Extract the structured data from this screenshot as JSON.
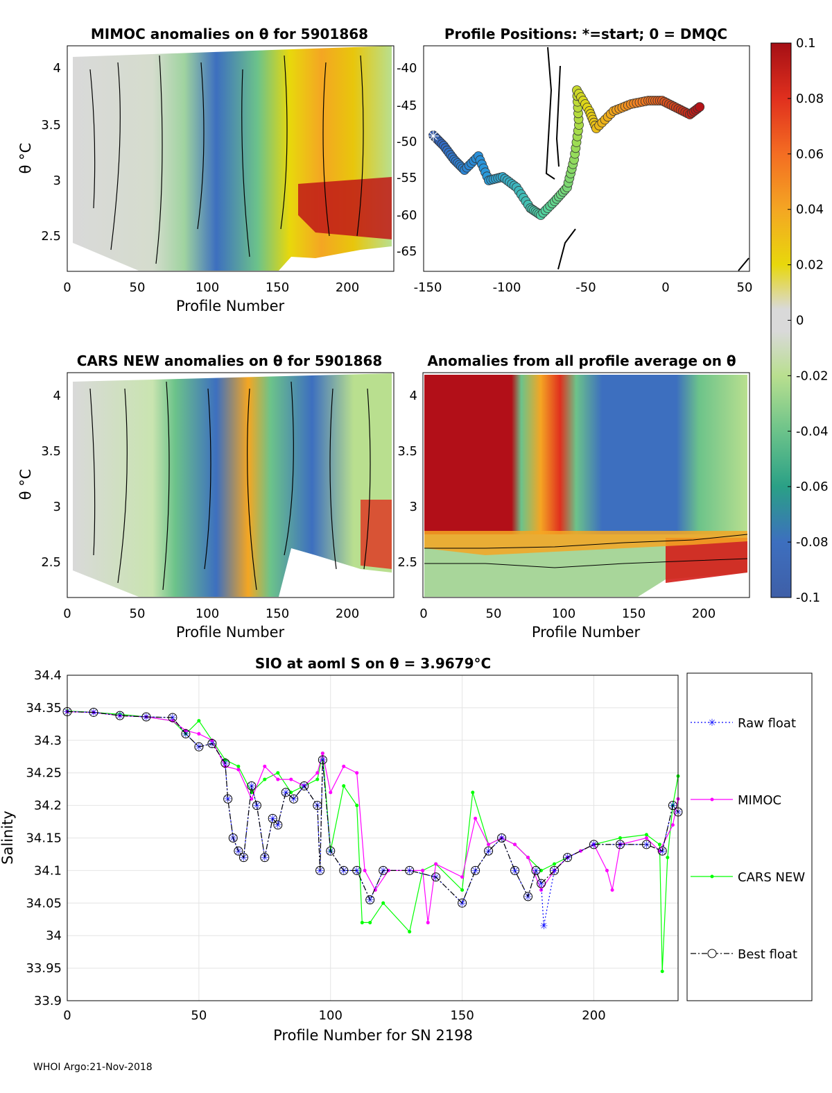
{
  "footer": "WHOI Argo:21-Nov-2018",
  "colorbar": {
    "ticks": [
      "0.1",
      "0.08",
      "0.06",
      "0.04",
      "0.02",
      "0",
      "-0.02",
      "-0.04",
      "-0.06",
      "-0.08",
      "-0.1"
    ],
    "range": [
      -0.1,
      0.1
    ]
  },
  "panels": {
    "mimoc": {
      "title": "MIMOC anomalies on θ  for 5901868",
      "xlabel": "Profile Number",
      "ylabel": "θ °C",
      "xticks": [
        "0",
        "50",
        "100",
        "150",
        "200"
      ],
      "yticks": [
        "4",
        "3.5",
        "3",
        "2.5"
      ]
    },
    "positions": {
      "title": "Profile Positions: *=start; 0 = DMQC",
      "xticks": [
        "-150",
        "-100",
        "-50",
        "0",
        "50"
      ],
      "yticks": [
        "-40",
        "-45",
        "-50",
        "-55",
        "-60",
        "-65"
      ]
    },
    "cars": {
      "title": "CARS NEW anomalies on θ for 5901868",
      "xlabel": "Profile Number",
      "ylabel": "θ °C",
      "xticks": [
        "0",
        "50",
        "100",
        "150",
        "200"
      ],
      "yticks": [
        "4",
        "3.5",
        "3",
        "2.5"
      ]
    },
    "avg": {
      "title": "Anomalies from all profile average on θ",
      "xlabel": "Profile Number",
      "xticks": [
        "0",
        "50",
        "100",
        "150",
        "200"
      ],
      "yticks": [
        "4",
        "3.5",
        "3",
        "2.5"
      ]
    }
  },
  "chart_data": {
    "type": "line",
    "title": "SIO at aoml S on θ = 3.9679°C",
    "xlabel": "Profile Number for SN 2198",
    "ylabel": "Salinity",
    "xlim": [
      0,
      232
    ],
    "ylim": [
      33.9,
      34.4
    ],
    "xticks": [
      "0",
      "50",
      "100",
      "150",
      "200"
    ],
    "yticks": [
      "34.4",
      "34.35",
      "34.3",
      "34.25",
      "34.2",
      "34.15",
      "34.1",
      "34.05",
      "34",
      "33.95",
      "33.9"
    ],
    "series": [
      {
        "name": "Raw float",
        "color": "#0000ff",
        "points": [
          [
            0,
            34.344
          ],
          [
            10,
            34.343
          ],
          [
            20,
            34.338
          ],
          [
            30,
            34.336
          ],
          [
            40,
            34.335
          ],
          [
            45,
            34.31
          ],
          [
            50,
            34.29
          ],
          [
            55,
            34.295
          ],
          [
            60,
            34.265
          ],
          [
            61,
            34.21
          ],
          [
            63,
            34.15
          ],
          [
            65,
            34.13
          ],
          [
            67,
            34.12
          ],
          [
            70,
            34.23
          ],
          [
            72,
            34.2
          ],
          [
            75,
            34.12
          ],
          [
            78,
            34.18
          ],
          [
            80,
            34.17
          ],
          [
            83,
            34.22
          ],
          [
            86,
            34.21
          ],
          [
            90,
            34.23
          ],
          [
            95,
            34.2
          ],
          [
            96,
            34.1
          ],
          [
            97,
            34.27
          ],
          [
            100,
            34.13
          ],
          [
            105,
            34.1
          ],
          [
            110,
            34.1
          ],
          [
            115,
            34.055
          ],
          [
            120,
            34.1
          ],
          [
            130,
            34.1
          ],
          [
            140,
            34.09
          ],
          [
            150,
            34.05
          ],
          [
            155,
            34.1
          ],
          [
            160,
            34.13
          ],
          [
            165,
            34.15
          ],
          [
            170,
            34.1
          ],
          [
            175,
            34.06
          ],
          [
            178,
            34.1
          ],
          [
            180,
            34.08
          ],
          [
            181,
            34.015
          ],
          [
            185,
            34.1
          ],
          [
            190,
            34.12
          ],
          [
            200,
            34.14
          ],
          [
            210,
            34.14
          ],
          [
            220,
            34.14
          ],
          [
            226,
            34.13
          ],
          [
            230,
            34.2
          ],
          [
            232,
            34.19
          ]
        ]
      },
      {
        "name": "MIMOC",
        "color": "#ff00ff",
        "points": [
          [
            0,
            34.344
          ],
          [
            10,
            34.343
          ],
          [
            20,
            34.338
          ],
          [
            30,
            34.336
          ],
          [
            40,
            34.33
          ],
          [
            45,
            34.315
          ],
          [
            50,
            34.31
          ],
          [
            55,
            34.3
          ],
          [
            60,
            34.26
          ],
          [
            65,
            34.255
          ],
          [
            70,
            34.21
          ],
          [
            75,
            34.26
          ],
          [
            80,
            34.24
          ],
          [
            85,
            34.24
          ],
          [
            90,
            34.23
          ],
          [
            95,
            34.25
          ],
          [
            97,
            34.28
          ],
          [
            100,
            34.22
          ],
          [
            105,
            34.26
          ],
          [
            110,
            34.25
          ],
          [
            113,
            34.1
          ],
          [
            117,
            34.07
          ],
          [
            122,
            34.1
          ],
          [
            135,
            34.1
          ],
          [
            137,
            34.02
          ],
          [
            140,
            34.11
          ],
          [
            150,
            34.09
          ],
          [
            155,
            34.18
          ],
          [
            160,
            34.14
          ],
          [
            165,
            34.15
          ],
          [
            170,
            34.14
          ],
          [
            175,
            34.12
          ],
          [
            180,
            34.07
          ],
          [
            185,
            34.1
          ],
          [
            190,
            34.12
          ],
          [
            195,
            34.13
          ],
          [
            200,
            34.14
          ],
          [
            205,
            34.1
          ],
          [
            207,
            34.07
          ],
          [
            210,
            34.14
          ],
          [
            220,
            34.15
          ],
          [
            225,
            34.13
          ],
          [
            230,
            34.17
          ],
          [
            232,
            34.21
          ]
        ]
      },
      {
        "name": "CARS NEW",
        "color": "#00ff00",
        "points": [
          [
            0,
            34.345
          ],
          [
            10,
            34.343
          ],
          [
            20,
            34.34
          ],
          [
            30,
            34.336
          ],
          [
            40,
            34.33
          ],
          [
            45,
            34.31
          ],
          [
            50,
            34.33
          ],
          [
            55,
            34.3
          ],
          [
            60,
            34.27
          ],
          [
            65,
            34.26
          ],
          [
            70,
            34.22
          ],
          [
            75,
            34.24
          ],
          [
            80,
            34.25
          ],
          [
            85,
            34.22
          ],
          [
            90,
            34.23
          ],
          [
            95,
            34.24
          ],
          [
            97,
            34.28
          ],
          [
            100,
            34.13
          ],
          [
            105,
            34.23
          ],
          [
            110,
            34.2
          ],
          [
            112,
            34.02
          ],
          [
            115,
            34.02
          ],
          [
            120,
            34.05
          ],
          [
            130,
            34.006
          ],
          [
            135,
            34.1
          ],
          [
            140,
            34.11
          ],
          [
            150,
            34.07
          ],
          [
            154,
            34.22
          ],
          [
            160,
            34.14
          ],
          [
            165,
            34.15
          ],
          [
            170,
            34.14
          ],
          [
            175,
            34.12
          ],
          [
            180,
            34.1
          ],
          [
            185,
            34.11
          ],
          [
            190,
            34.12
          ],
          [
            200,
            34.14
          ],
          [
            210,
            34.15
          ],
          [
            220,
            34.155
          ],
          [
            225,
            34.14
          ],
          [
            226,
            33.945
          ],
          [
            228,
            34.12
          ],
          [
            230,
            34.2
          ],
          [
            232,
            34.245
          ]
        ]
      },
      {
        "name": "Best float",
        "color": "#000000",
        "points": [
          [
            0,
            34.344
          ],
          [
            10,
            34.343
          ],
          [
            20,
            34.338
          ],
          [
            30,
            34.336
          ],
          [
            40,
            34.335
          ],
          [
            45,
            34.31
          ],
          [
            50,
            34.29
          ],
          [
            55,
            34.295
          ],
          [
            60,
            34.265
          ],
          [
            61,
            34.21
          ],
          [
            63,
            34.15
          ],
          [
            65,
            34.13
          ],
          [
            67,
            34.12
          ],
          [
            70,
            34.23
          ],
          [
            72,
            34.2
          ],
          [
            75,
            34.12
          ],
          [
            78,
            34.18
          ],
          [
            80,
            34.17
          ],
          [
            83,
            34.22
          ],
          [
            86,
            34.21
          ],
          [
            90,
            34.23
          ],
          [
            95,
            34.2
          ],
          [
            96,
            34.1
          ],
          [
            97,
            34.27
          ],
          [
            100,
            34.13
          ],
          [
            105,
            34.1
          ],
          [
            110,
            34.1
          ],
          [
            115,
            34.055
          ],
          [
            120,
            34.1
          ],
          [
            130,
            34.1
          ],
          [
            140,
            34.09
          ],
          [
            150,
            34.05
          ],
          [
            155,
            34.1
          ],
          [
            160,
            34.13
          ],
          [
            165,
            34.15
          ],
          [
            170,
            34.1
          ],
          [
            175,
            34.06
          ],
          [
            178,
            34.1
          ],
          [
            180,
            34.08
          ],
          [
            185,
            34.1
          ],
          [
            190,
            34.12
          ],
          [
            200,
            34.14
          ],
          [
            210,
            34.14
          ],
          [
            220,
            34.14
          ],
          [
            226,
            34.13
          ],
          [
            230,
            34.2
          ],
          [
            232,
            34.19
          ]
        ]
      }
    ]
  }
}
